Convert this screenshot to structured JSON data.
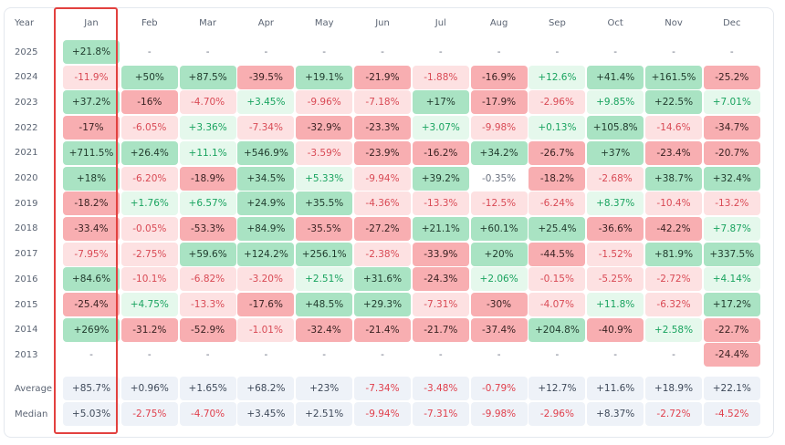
{
  "header": {
    "year_label": "Year",
    "months": [
      "Jan",
      "Feb",
      "Mar",
      "Apr",
      "May",
      "Jun",
      "Jul",
      "Aug",
      "Sep",
      "Oct",
      "Nov",
      "Dec"
    ]
  },
  "rows": [
    {
      "year": "2025",
      "values": [
        "+21.8%",
        "-",
        "-",
        "-",
        "-",
        "-",
        "-",
        "-",
        "-",
        "-",
        "-",
        "-"
      ],
      "tones": [
        "g",
        "n",
        "n",
        "n",
        "n",
        "n",
        "n",
        "n",
        "n",
        "n",
        "n",
        "n"
      ]
    },
    {
      "year": "2024",
      "values": [
        "-11.9%",
        "+50%",
        "+87.5%",
        "-39.5%",
        "+19.1%",
        "-21.9%",
        "-1.88%",
        "-16.9%",
        "+12.6%",
        "+41.4%",
        "+161.5%",
        "-25.2%"
      ],
      "tones": [
        "lr",
        "g",
        "g",
        "r",
        "g",
        "r",
        "lr",
        "r",
        "lg",
        "g",
        "g",
        "r"
      ]
    },
    {
      "year": "2023",
      "values": [
        "+37.2%",
        "-16%",
        "-4.70%",
        "+3.45%",
        "-9.96%",
        "-7.18%",
        "+17%",
        "-17.9%",
        "-2.96%",
        "+9.85%",
        "+22.5%",
        "+7.01%"
      ],
      "tones": [
        "g",
        "r",
        "lr",
        "lg",
        "lr",
        "lr",
        "g",
        "r",
        "lr",
        "lg",
        "g",
        "lg"
      ]
    },
    {
      "year": "2022",
      "values": [
        "-17%",
        "-6.05%",
        "+3.36%",
        "-7.34%",
        "-32.9%",
        "-23.3%",
        "+3.07%",
        "-9.98%",
        "+0.13%",
        "+105.8%",
        "-14.6%",
        "-34.7%"
      ],
      "tones": [
        "r",
        "lr",
        "lg",
        "lr",
        "r",
        "r",
        "lg",
        "lr",
        "lg",
        "g",
        "lr",
        "r"
      ]
    },
    {
      "year": "2021",
      "values": [
        "+711.5%",
        "+26.4%",
        "+11.1%",
        "+546.9%",
        "-3.59%",
        "-23.9%",
        "-16.2%",
        "+34.2%",
        "-26.7%",
        "+37%",
        "-23.4%",
        "-20.7%"
      ],
      "tones": [
        "g",
        "g",
        "lg",
        "g",
        "lr",
        "r",
        "r",
        "g",
        "r",
        "g",
        "r",
        "r"
      ]
    },
    {
      "year": "2020",
      "values": [
        "+18%",
        "-6.20%",
        "-18.9%",
        "+34.5%",
        "+5.33%",
        "-9.94%",
        "+39.2%",
        "-0.35%",
        "-18.2%",
        "-2.68%",
        "+38.7%",
        "+32.4%"
      ],
      "tones": [
        "g",
        "lr",
        "r",
        "g",
        "lg",
        "lr",
        "g",
        "n",
        "r",
        "lr",
        "g",
        "g"
      ]
    },
    {
      "year": "2019",
      "values": [
        "-18.2%",
        "+1.76%",
        "+6.57%",
        "+24.9%",
        "+35.5%",
        "-4.36%",
        "-13.3%",
        "-12.5%",
        "-6.24%",
        "+8.37%",
        "-10.4%",
        "-13.2%"
      ],
      "tones": [
        "r",
        "lg",
        "lg",
        "g",
        "g",
        "lr",
        "lr",
        "lr",
        "lr",
        "lg",
        "lr",
        "lr"
      ]
    },
    {
      "year": "2018",
      "values": [
        "-33.4%",
        "-0.05%",
        "-53.3%",
        "+84.9%",
        "-35.5%",
        "-27.2%",
        "+21.1%",
        "+60.1%",
        "+25.4%",
        "-36.6%",
        "-42.2%",
        "+7.87%"
      ],
      "tones": [
        "r",
        "lr",
        "r",
        "g",
        "r",
        "r",
        "g",
        "g",
        "g",
        "r",
        "r",
        "lg"
      ]
    },
    {
      "year": "2017",
      "values": [
        "-7.95%",
        "-2.75%",
        "+59.6%",
        "+124.2%",
        "+256.1%",
        "-2.38%",
        "-33.9%",
        "+20%",
        "-44.5%",
        "-1.52%",
        "+81.9%",
        "+337.5%"
      ],
      "tones": [
        "lr",
        "lr",
        "g",
        "g",
        "g",
        "lr",
        "r",
        "g",
        "r",
        "lr",
        "g",
        "g"
      ]
    },
    {
      "year": "2016",
      "values": [
        "+84.6%",
        "-10.1%",
        "-6.82%",
        "-3.20%",
        "+2.51%",
        "+31.6%",
        "-24.3%",
        "+2.06%",
        "-0.15%",
        "-5.25%",
        "-2.72%",
        "+4.14%"
      ],
      "tones": [
        "g",
        "lr",
        "lr",
        "lr",
        "lg",
        "g",
        "r",
        "lg",
        "lr",
        "lr",
        "lr",
        "lg"
      ]
    },
    {
      "year": "2015",
      "values": [
        "-25.4%",
        "+4.75%",
        "-13.3%",
        "-17.6%",
        "+48.5%",
        "+29.3%",
        "-7.31%",
        "-30%",
        "-4.07%",
        "+11.8%",
        "-6.32%",
        "+17.2%"
      ],
      "tones": [
        "r",
        "lg",
        "lr",
        "r",
        "g",
        "g",
        "lr",
        "r",
        "lr",
        "lg",
        "lr",
        "g"
      ]
    },
    {
      "year": "2014",
      "values": [
        "+269%",
        "-31.2%",
        "-52.9%",
        "-1.01%",
        "-32.4%",
        "-21.4%",
        "-21.7%",
        "-37.4%",
        "+204.8%",
        "-40.9%",
        "+2.58%",
        "-22.7%"
      ],
      "tones": [
        "g",
        "r",
        "r",
        "lr",
        "r",
        "r",
        "r",
        "r",
        "g",
        "r",
        "lg",
        "r"
      ]
    },
    {
      "year": "2013",
      "values": [
        "-",
        "-",
        "-",
        "-",
        "-",
        "-",
        "-",
        "-",
        "-",
        "-",
        "-",
        "-24.4%"
      ],
      "tones": [
        "n",
        "n",
        "n",
        "n",
        "n",
        "n",
        "n",
        "n",
        "n",
        "n",
        "n",
        "r"
      ]
    }
  ],
  "stats": [
    {
      "label": "Average",
      "values": [
        "+85.7%",
        "+0.96%",
        "+1.65%",
        "+68.2%",
        "+23%",
        "-7.34%",
        "-3.48%",
        "-0.79%",
        "+12.7%",
        "+11.6%",
        "+18.9%",
        "+22.1%"
      ],
      "tones": [
        "s",
        "s",
        "s",
        "s",
        "s",
        "sr",
        "sr",
        "sr",
        "s",
        "s",
        "s",
        "s"
      ]
    },
    {
      "label": "Median",
      "values": [
        "+5.03%",
        "-2.75%",
        "-4.70%",
        "+3.45%",
        "+2.51%",
        "-9.94%",
        "-7.31%",
        "-9.98%",
        "-2.96%",
        "+8.37%",
        "-2.72%",
        "-4.52%"
      ],
      "tones": [
        "s",
        "sr",
        "sr",
        "s",
        "s",
        "sr",
        "sr",
        "sr",
        "sr",
        "s",
        "sr",
        "sr"
      ]
    }
  ],
  "colors": {
    "positive_strong": "#a9e3c3",
    "positive_light": "#e5f8ec",
    "negative_strong": "#f8aeb1",
    "negative_light": "#fde1e2",
    "stat_bg": "#eef2f8",
    "highlight_border": "#e2413f"
  }
}
